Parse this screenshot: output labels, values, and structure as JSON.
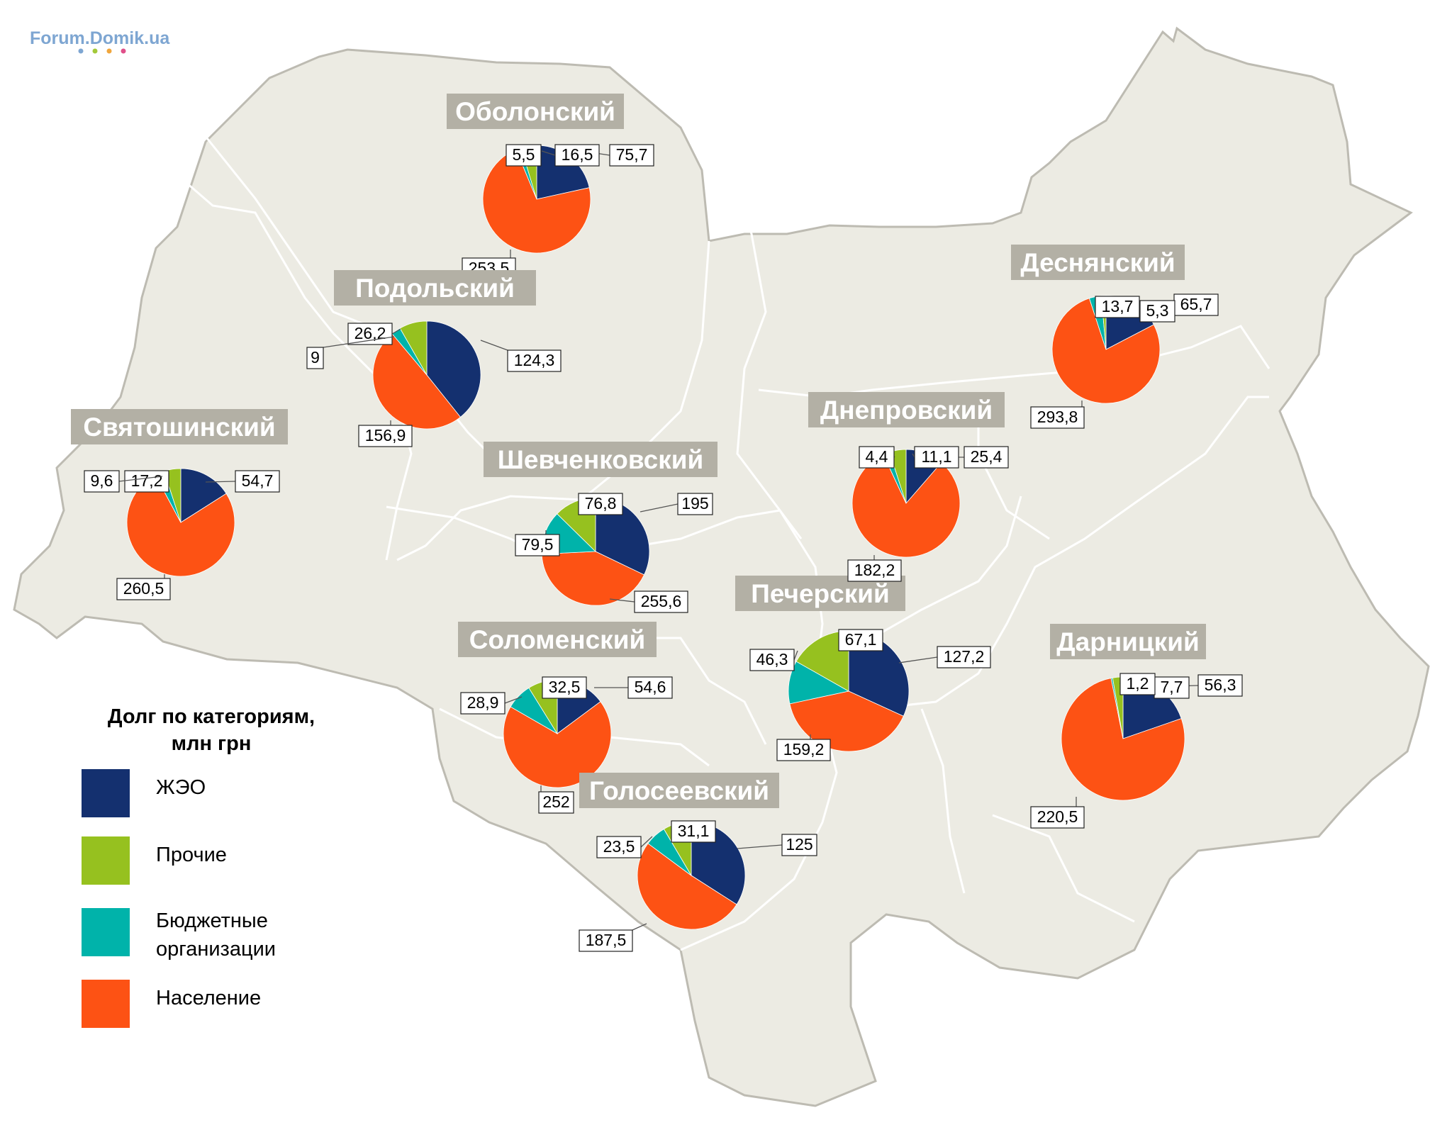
{
  "watermark": {
    "text": "Forum.Domik.ua",
    "color": "#7ea6d2",
    "dot_colors": [
      "#7ea6d2",
      "#a3c93a",
      "#f0a63c",
      "#e0508a"
    ]
  },
  "colors": {
    "map_fill": "#ecebe3",
    "map_border": "#bdbbb2",
    "title_bg": "#b3b0a5",
    "ЖЭО": "#14306f",
    "Прочие": "#96c11f",
    "Бюджетные организации": "#00b3aa",
    "Население": "#fd5214"
  },
  "legend": {
    "title_line1": "Долг по категориям,",
    "title_line2": "млн грн",
    "items": [
      {
        "key": "ЖЭО",
        "label": "ЖЭО"
      },
      {
        "key": "Прочие",
        "label": "Прочие"
      },
      {
        "key": "Бюджетные организации",
        "label_line1": "Бюджетные",
        "label_line2": "организации"
      },
      {
        "key": "Население",
        "label": "Население"
      }
    ]
  },
  "chart_data": {
    "type": "pie",
    "unit": "млн грн",
    "categories": [
      "ЖЭО",
      "Прочие",
      "Бюджетные организации",
      "Население"
    ],
    "districts": [
      {
        "name": "Оболонский",
        "values": {
          "ЖЭО": "75,7",
          "Прочие": "16,5",
          "Бюджетные организации": "5,5",
          "Население": "253,5"
        }
      },
      {
        "name": "Подольский",
        "values": {
          "ЖЭО": "124,3",
          "Прочие": "26,2",
          "Бюджетные организации": "9",
          "Население": "156,9"
        }
      },
      {
        "name": "Святошинский",
        "values": {
          "ЖЭО": "54,7",
          "Прочие": "17,2",
          "Бюджетные организации": "9,6",
          "Население": "260,5"
        }
      },
      {
        "name": "Шевченковский",
        "values": {
          "ЖЭО": "195",
          "Прочие": "76,8",
          "Бюджетные организации": "79,5",
          "Население": "255,6"
        }
      },
      {
        "name": "Соломенский",
        "values": {
          "ЖЭО": "54,6",
          "Прочие": "32,5",
          "Бюджетные организации": "28,9",
          "Население": "252"
        }
      },
      {
        "name": "Голосеевский",
        "values": {
          "ЖЭО": "125",
          "Прочие": "31,1",
          "Бюджетные организации": "23,5",
          "Население": "187,5"
        }
      },
      {
        "name": "Печерский",
        "values": {
          "ЖЭО": "127,2",
          "Прочие": "67,1",
          "Бюджетные организации": "46,3",
          "Население": "159,2"
        }
      },
      {
        "name": "Деснянский",
        "values": {
          "ЖЭО": "65,7",
          "Прочие": "5,3",
          "Бюджетные организации": "13,7",
          "Население": "293,8"
        }
      },
      {
        "name": "Днепровский",
        "values": {
          "ЖЭО": "25,4",
          "Прочие": "11,1",
          "Бюджетные организации": "4,4",
          "Население": "182,2"
        }
      },
      {
        "name": "Дарницкий",
        "values": {
          "ЖЭО": "56,3",
          "Прочие": "7,7",
          "Бюджетные организации": "1,2",
          "Население": "220,5"
        }
      }
    ]
  }
}
